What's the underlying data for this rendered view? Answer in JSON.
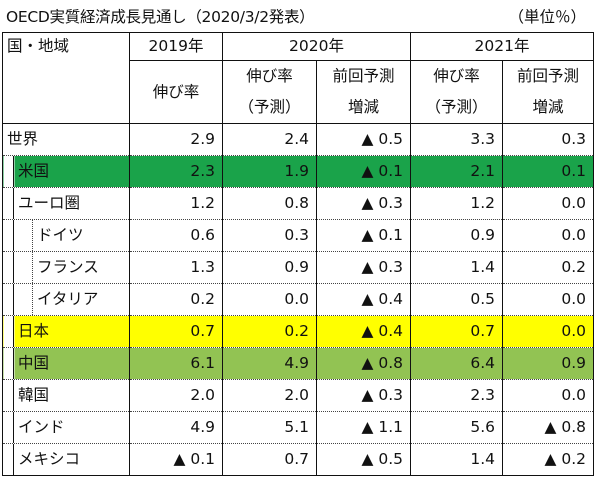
{
  "caption": {
    "title": "OECD実質経済成長見通し（2020/3/2発表）",
    "unit": "（単位％）"
  },
  "header": {
    "region": "国・地域",
    "y2019": "2019年",
    "y2020": "2020年",
    "y2021": "2021年",
    "growth": "伸び率",
    "growth_forecast_1": "伸び率",
    "growth_forecast_2": "（予測）",
    "prev_diff_1": "前回予測",
    "prev_diff_2": "増減"
  },
  "rows": [
    {
      "name": "世界",
      "v2019": "2.9",
      "v2020": "2.4",
      "d2020": "▲ 0.5",
      "v2021": "3.3",
      "d2021": "0.3"
    },
    {
      "name": "米国",
      "v2019": "2.3",
      "v2020": "1.9",
      "d2020": "▲ 0.1",
      "v2021": "2.1",
      "d2021": "0.1"
    },
    {
      "name": "ユーロ圏",
      "v2019": "1.2",
      "v2020": "0.8",
      "d2020": "▲ 0.3",
      "v2021": "1.2",
      "d2021": "0.0"
    },
    {
      "name": "ドイツ",
      "v2019": "0.6",
      "v2020": "0.3",
      "d2020": "▲ 0.1",
      "v2021": "0.9",
      "d2021": "0.0"
    },
    {
      "name": "フランス",
      "v2019": "1.3",
      "v2020": "0.9",
      "d2020": "▲ 0.3",
      "v2021": "1.4",
      "d2021": "0.2"
    },
    {
      "name": "イタリア",
      "v2019": "0.2",
      "v2020": "0.0",
      "d2020": "▲ 0.4",
      "v2021": "0.5",
      "d2021": "0.0"
    },
    {
      "name": "日本",
      "v2019": "0.7",
      "v2020": "0.2",
      "d2020": "▲ 0.4",
      "v2021": "0.7",
      "d2021": "0.0"
    },
    {
      "name": "中国",
      "v2019": "6.1",
      "v2020": "4.9",
      "d2020": "▲ 0.8",
      "v2021": "6.4",
      "d2021": "0.9"
    },
    {
      "name": "韓国",
      "v2019": "2.0",
      "v2020": "2.0",
      "d2020": "▲ 0.3",
      "v2021": "2.3",
      "d2021": "0.0"
    },
    {
      "name": "インド",
      "v2019": "4.9",
      "v2020": "5.1",
      "d2020": "▲ 1.1",
      "v2021": "5.6",
      "d2021": "▲ 0.8"
    },
    {
      "name": "メキシコ",
      "v2019": "▲ 0.1",
      "v2020": "0.7",
      "d2020": "▲ 0.5",
      "v2021": "1.4",
      "d2021": "▲ 0.2"
    }
  ],
  "colors": {
    "us_highlight": "#1aa34a",
    "japan_highlight": "#ffff00",
    "china_highlight": "#92c353"
  }
}
